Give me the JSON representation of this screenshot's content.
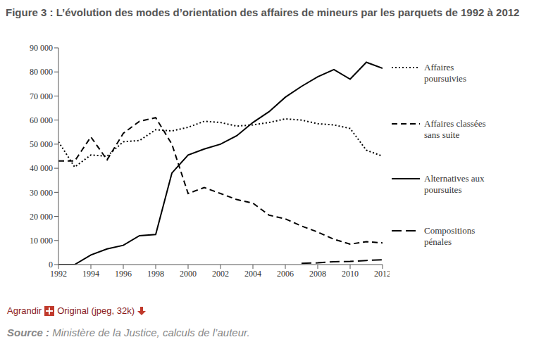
{
  "chart_data": {
    "type": "line",
    "title": "Figure 3 : L’évolution des modes d’orientation des affaires de mineurs par les parquets de 1992 à 2012",
    "x": [
      1992,
      1993,
      1994,
      1995,
      1996,
      1997,
      1998,
      1999,
      2000,
      2001,
      2002,
      2003,
      2004,
      2005,
      2006,
      2007,
      2008,
      2009,
      2010,
      2011,
      2012
    ],
    "xlim": [
      1992,
      2012
    ],
    "xticks": [
      1992,
      1994,
      1996,
      1998,
      2000,
      2002,
      2004,
      2006,
      2008,
      2010,
      2012
    ],
    "ylim": [
      0,
      90000
    ],
    "yticks": [
      0,
      {
        "value": 10000,
        "label": "10 000"
      },
      {
        "value": 20000,
        "label": "20 000"
      },
      {
        "value": 30000,
        "label": "30 000"
      },
      {
        "value": 40000,
        "label": "40 000"
      },
      {
        "value": 50000,
        "label": "50 000"
      },
      {
        "value": 60000,
        "label": "60 000"
      },
      {
        "value": 70000,
        "label": "70 000"
      },
      {
        "value": 80000,
        "label": "80 000"
      },
      {
        "value": 90000,
        "label": "90 000"
      }
    ],
    "grid": false,
    "legend": "right",
    "series": [
      {
        "name": "Affaires poursuivies",
        "color": "#000000",
        "line_style": "dotted",
        "values": [
          51000,
          40500,
          45500,
          45000,
          51000,
          51500,
          56000,
          55500,
          57000,
          59500,
          59000,
          57500,
          58000,
          59000,
          60500,
          60000,
          58500,
          58000,
          56500,
          47500,
          45000
        ]
      },
      {
        "name": "Affaires classées sans suite",
        "color": "#000000",
        "line_style": "dashed",
        "values": [
          43000,
          43000,
          53000,
          43500,
          54500,
          59500,
          61000,
          50000,
          29500,
          32000,
          29500,
          27000,
          25500,
          20500,
          19000,
          16000,
          13500,
          10500,
          8500,
          9500,
          9000
        ]
      },
      {
        "name": "Alternatives aux poursuites",
        "color": "#000000",
        "line_style": "solid",
        "values": [
          0,
          0,
          4000,
          6500,
          8000,
          12000,
          12500,
          38000,
          45500,
          48000,
          50000,
          53500,
          59000,
          63500,
          69500,
          74000,
          78000,
          81000,
          77000,
          84000,
          81500
        ]
      },
      {
        "name": "Compositions pénales",
        "color": "#000000",
        "line_style": "longdash",
        "values": [
          null,
          null,
          null,
          null,
          null,
          null,
          null,
          null,
          null,
          null,
          null,
          null,
          null,
          null,
          null,
          500,
          700,
          1200,
          1300,
          1700,
          2000
        ]
      }
    ],
    "annotations": [
      "Agrandir",
      "Original (jpeg, 32k)"
    ],
    "source_label": "Source :",
    "source": "Ministère de la Justice, calculs de l’auteur."
  }
}
